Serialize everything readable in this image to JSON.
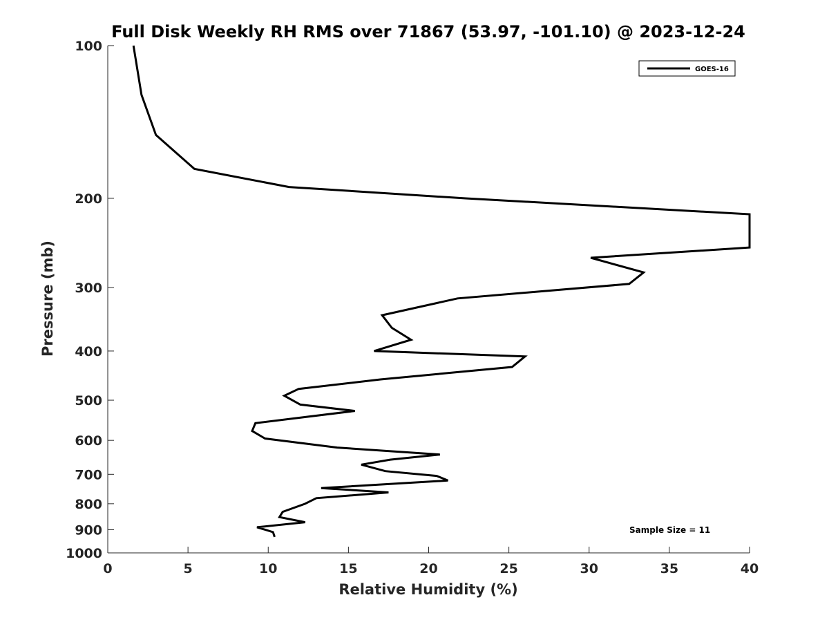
{
  "chart_data": {
    "type": "line",
    "title": "Full Disk Weekly RH RMS over 71867 (53.97, -101.10) @ 2023-12-24",
    "xlabel": "Relative Humidity (%)",
    "ylabel": "Pressure (mb)",
    "xlim": [
      0,
      40
    ],
    "ylim": [
      100,
      1000
    ],
    "y_scale": "log",
    "y_reversed": true,
    "grid": false,
    "legend_position": "top-right",
    "x_ticks": [
      0,
      5,
      10,
      15,
      20,
      25,
      30,
      35,
      40
    ],
    "y_ticks": [
      100,
      200,
      300,
      400,
      500,
      600,
      700,
      800,
      900,
      1000
    ],
    "annotation": "Sample Size = 11",
    "series": [
      {
        "name": "GOES-16",
        "color": "#000000",
        "points": [
          [
            1.6,
            100
          ],
          [
            2.1,
            125
          ],
          [
            3.0,
            150
          ],
          [
            5.4,
            175
          ],
          [
            11.3,
            190
          ],
          [
            22.3,
            200
          ],
          [
            40.0,
            215
          ],
          [
            40.0,
            250
          ],
          [
            30.1,
            262
          ],
          [
            33.4,
            280
          ],
          [
            32.5,
            295
          ],
          [
            21.8,
            315
          ],
          [
            17.1,
            340
          ],
          [
            17.7,
            360
          ],
          [
            18.9,
            380
          ],
          [
            16.6,
            400
          ],
          [
            26.0,
            410
          ],
          [
            25.2,
            430
          ],
          [
            17.0,
            455
          ],
          [
            11.9,
            475
          ],
          [
            11.0,
            490
          ],
          [
            12.0,
            510
          ],
          [
            15.4,
            525
          ],
          [
            9.2,
            555
          ],
          [
            9.0,
            575
          ],
          [
            9.8,
            595
          ],
          [
            14.3,
            620
          ],
          [
            20.7,
            640
          ],
          [
            17.6,
            655
          ],
          [
            15.8,
            670
          ],
          [
            17.3,
            690
          ],
          [
            20.5,
            705
          ],
          [
            21.2,
            720
          ],
          [
            13.3,
            745
          ],
          [
            17.5,
            760
          ],
          [
            13.0,
            780
          ],
          [
            12.3,
            800
          ],
          [
            10.9,
            830
          ],
          [
            10.7,
            850
          ],
          [
            12.3,
            870
          ],
          [
            9.3,
            890
          ],
          [
            10.3,
            910
          ],
          [
            10.4,
            930
          ]
        ]
      }
    ]
  }
}
